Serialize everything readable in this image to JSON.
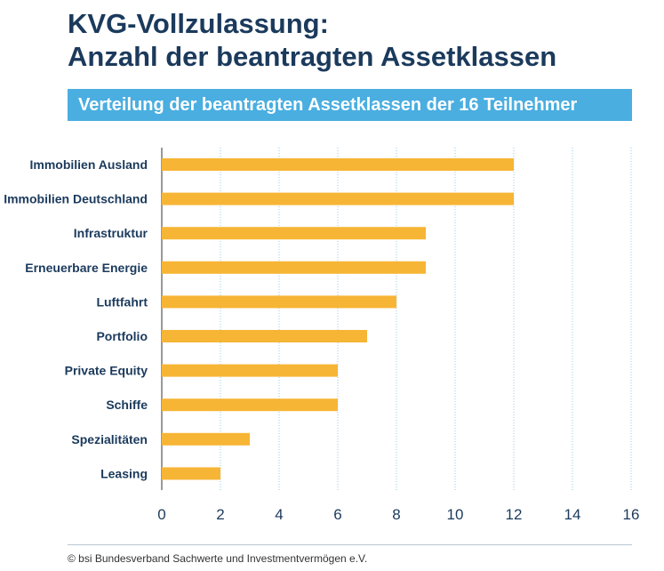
{
  "header": {
    "title_line1": "KVG-Vollzulassung:",
    "title_line2": "Anzahl der beantragten Assetklassen",
    "subtitle": "Verteilung der beantragten Assetklassen der 16 Teilnehmer"
  },
  "footer": {
    "source": "© bsi Bundesverband Sachwerte und Investmentvermögen e.V."
  },
  "colors": {
    "bar": "#f7b535",
    "title": "#1b3a5c",
    "banner": "#4aaee0",
    "grid": "#8cc8e8"
  },
  "chart_data": {
    "type": "bar",
    "orientation": "horizontal",
    "categories": [
      "Immobilien Ausland",
      "Immobilien Deutschland",
      "Infrastruktur",
      "Erneuerbare Energie",
      "Luftfahrt",
      "Portfolio",
      "Private Equity",
      "Schiffe",
      "Spezialitäten",
      "Leasing"
    ],
    "values": [
      12,
      12,
      9,
      9,
      8,
      7,
      6,
      6,
      3,
      2
    ],
    "xlim": [
      0,
      16
    ],
    "xticks": [
      0,
      2,
      4,
      6,
      8,
      10,
      12,
      14,
      16
    ],
    "grid": "vertical dotted"
  }
}
